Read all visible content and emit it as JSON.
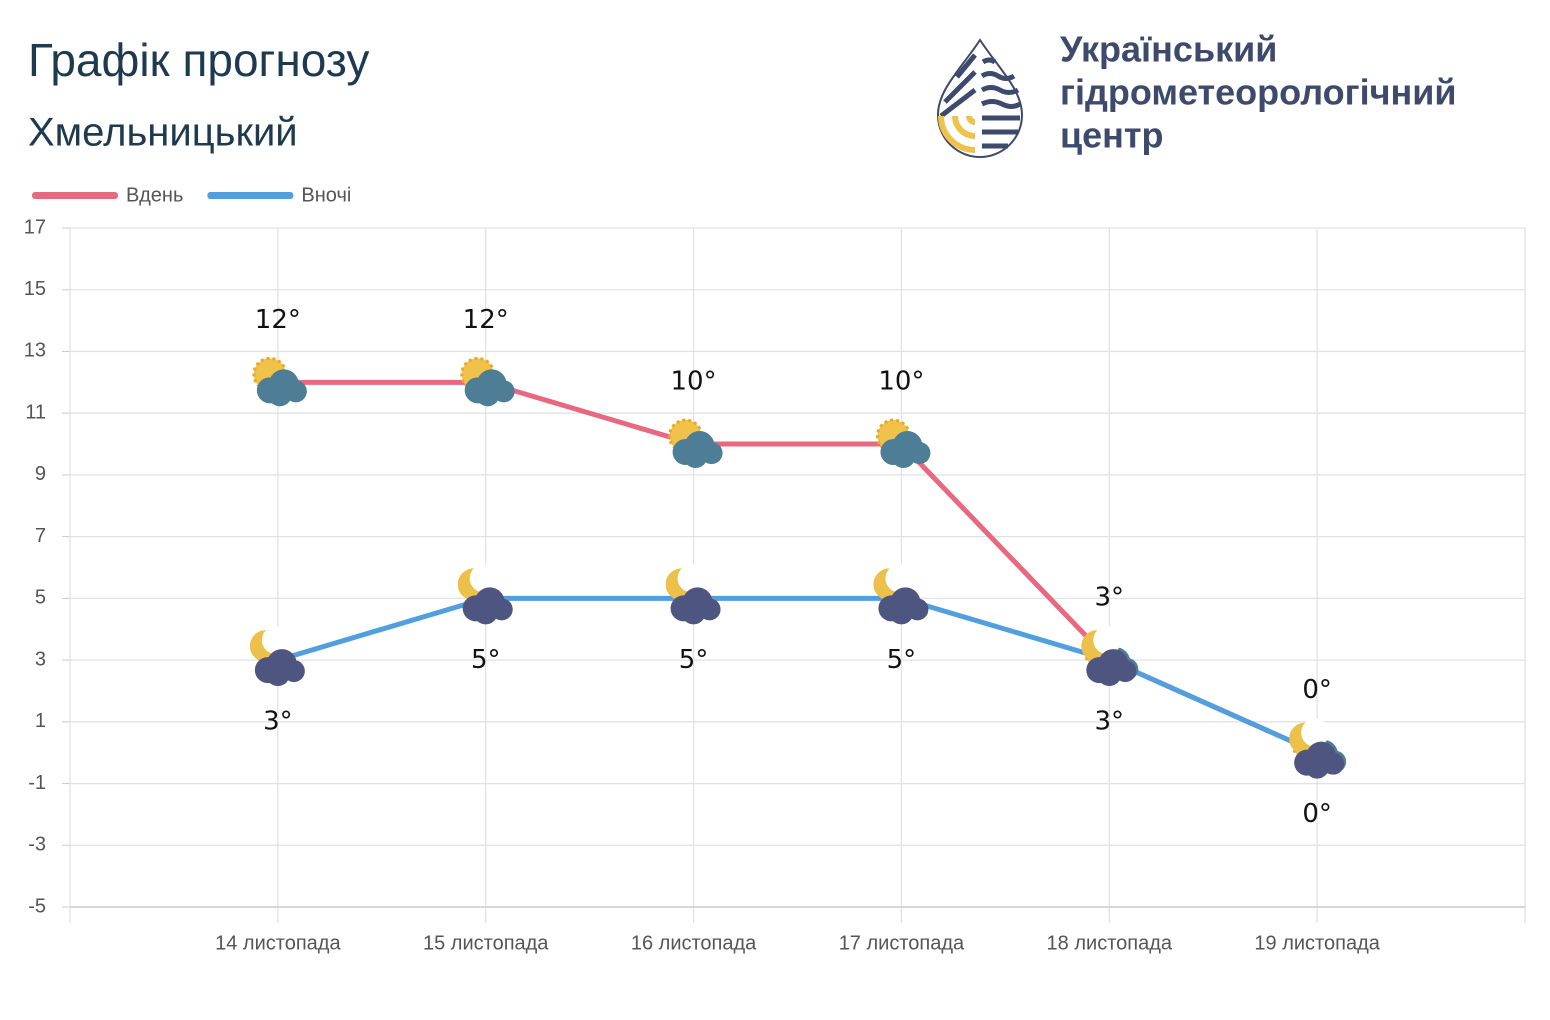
{
  "header": {
    "title": "Графік прогнозу",
    "subtitle": "Хмельницький",
    "org": [
      "Український",
      "гідрометеорологічний",
      "центр"
    ]
  },
  "chart_data": {
    "type": "line",
    "categories": [
      "14 листопада",
      "15 листопада",
      "16 листопада",
      "17 листопада",
      "18 листопада",
      "19 листопада"
    ],
    "series": [
      {
        "name": "Вдень",
        "color": "#e8697f",
        "values": [
          12,
          12,
          10,
          10,
          3,
          0
        ],
        "value_labels": [
          "12°",
          "12°",
          "10°",
          "10°",
          "3°",
          "0°"
        ]
      },
      {
        "name": "Вночі",
        "color": "#529fe0",
        "values": [
          3,
          5,
          5,
          5,
          3,
          0
        ],
        "value_labels": [
          "3°",
          "5°",
          "5°",
          "5°",
          "3°",
          "0°"
        ]
      }
    ],
    "ylim": [
      -5,
      17
    ],
    "yticks": [
      17,
      15,
      13,
      11,
      9,
      7,
      5,
      3,
      1,
      -1,
      -3,
      -5
    ],
    "grid": true,
    "legend": "top-left"
  }
}
